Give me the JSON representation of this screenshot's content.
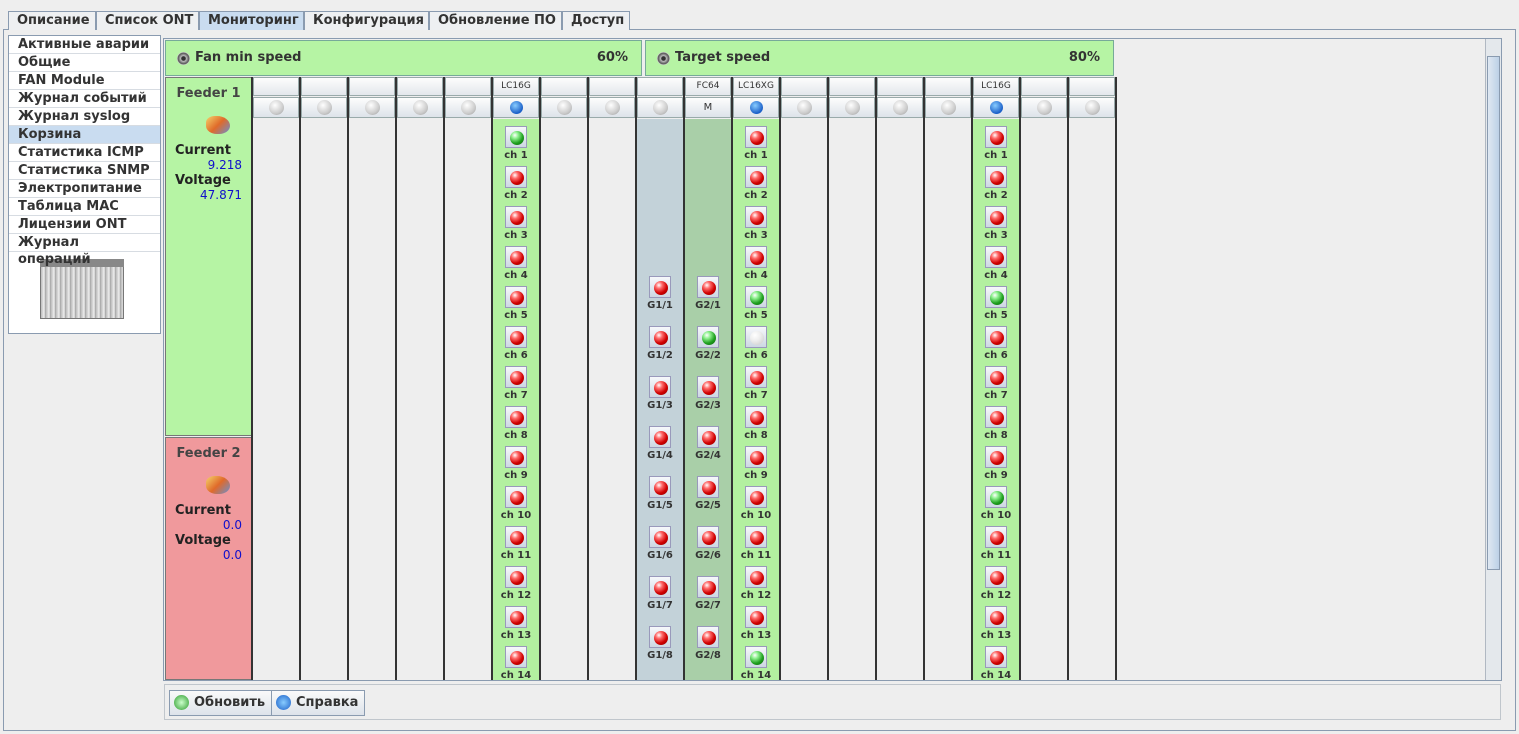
{
  "tabs": [
    {
      "label": "Описание"
    },
    {
      "label": "Список ONT"
    },
    {
      "label": "Мониторинг",
      "active": true
    },
    {
      "label": "Конфигурация"
    },
    {
      "label": "Обновление ПО"
    },
    {
      "label": "Доступ"
    }
  ],
  "menu": [
    {
      "label": "Активные аварии"
    },
    {
      "label": "Общие"
    },
    {
      "label": "FAN Module"
    },
    {
      "label": "Журнал событий"
    },
    {
      "label": "Журнал syslog"
    },
    {
      "label": "Корзина",
      "selected": true
    },
    {
      "label": "Статистика ICMP"
    },
    {
      "label": "Статистика SNMP"
    },
    {
      "label": "Электропитание"
    },
    {
      "label": "Таблица MAC"
    },
    {
      "label": "Лицензии ONT"
    },
    {
      "label": "Журнал операций"
    }
  ],
  "fans": [
    {
      "label": "Fan min speed",
      "value": "60%"
    },
    {
      "label": "Target speed",
      "value": "80%"
    }
  ],
  "feeders": [
    {
      "title": "Feeder 1",
      "current_label": "Current",
      "current": "9.218",
      "voltage_label": "Voltage",
      "voltage": "47.871",
      "color": "#b6f4a4"
    },
    {
      "title": "Feeder 2",
      "current_label": "Current",
      "current": "0.0",
      "voltage_label": "Voltage",
      "voltage": "0.0",
      "color": "#f0999c"
    }
  ],
  "slots": [
    {
      "status": "off"
    },
    {
      "status": "off"
    },
    {
      "status": "off"
    },
    {
      "status": "off"
    },
    {
      "status": "off"
    },
    {
      "label": "LC16G",
      "status": "info",
      "body": "#b3f0a0",
      "pitch": 40,
      "channels": [
        {
          "name": "ch 1",
          "state": "green"
        },
        {
          "name": "ch 2",
          "state": "red"
        },
        {
          "name": "ch 3",
          "state": "red"
        },
        {
          "name": "ch 4",
          "state": "red"
        },
        {
          "name": "ch 5",
          "state": "red"
        },
        {
          "name": "ch 6",
          "state": "red"
        },
        {
          "name": "ch 7",
          "state": "red"
        },
        {
          "name": "ch 8",
          "state": "red"
        },
        {
          "name": "ch 9",
          "state": "red"
        },
        {
          "name": "ch 10",
          "state": "red"
        },
        {
          "name": "ch 11",
          "state": "red"
        },
        {
          "name": "ch 12",
          "state": "red"
        },
        {
          "name": "ch 13",
          "state": "red"
        },
        {
          "name": "ch 14",
          "state": "red"
        }
      ]
    },
    {
      "status": "off"
    },
    {
      "status": "off"
    },
    {
      "status": "off",
      "body": "#c3d2d9",
      "pitch": 50,
      "start": 150,
      "channels": [
        {
          "name": "G1/1",
          "state": "red"
        },
        {
          "name": "G1/2",
          "state": "red"
        },
        {
          "name": "G1/3",
          "state": "red"
        },
        {
          "name": "G1/4",
          "state": "red"
        },
        {
          "name": "G1/5",
          "state": "red"
        },
        {
          "name": "G1/6",
          "state": "red"
        },
        {
          "name": "G1/7",
          "state": "red"
        },
        {
          "name": "G1/8",
          "state": "red"
        }
      ]
    },
    {
      "label": "FC64",
      "sub": "M",
      "body": "#a9cfa8",
      "pitch": 50,
      "start": 150,
      "channels": [
        {
          "name": "G2/1",
          "state": "red"
        },
        {
          "name": "G2/2",
          "state": "green"
        },
        {
          "name": "G2/3",
          "state": "red"
        },
        {
          "name": "G2/4",
          "state": "red"
        },
        {
          "name": "G2/5",
          "state": "red"
        },
        {
          "name": "G2/6",
          "state": "red"
        },
        {
          "name": "G2/7",
          "state": "red"
        },
        {
          "name": "G2/8",
          "state": "red"
        }
      ]
    },
    {
      "label": "LC16XG",
      "status": "info",
      "body": "#b3f0a0",
      "pitch": 40,
      "channels": [
        {
          "name": "ch 1",
          "state": "red"
        },
        {
          "name": "ch 2",
          "state": "red"
        },
        {
          "name": "ch 3",
          "state": "red"
        },
        {
          "name": "ch 4",
          "state": "red"
        },
        {
          "name": "ch 5",
          "state": "green"
        },
        {
          "name": "ch 6",
          "state": "off"
        },
        {
          "name": "ch 7",
          "state": "red"
        },
        {
          "name": "ch 8",
          "state": "red"
        },
        {
          "name": "ch 9",
          "state": "red"
        },
        {
          "name": "ch 10",
          "state": "red"
        },
        {
          "name": "ch 11",
          "state": "red"
        },
        {
          "name": "ch 12",
          "state": "red"
        },
        {
          "name": "ch 13",
          "state": "red"
        },
        {
          "name": "ch 14",
          "state": "green"
        }
      ]
    },
    {
      "status": "off"
    },
    {
      "status": "off"
    },
    {
      "status": "off"
    },
    {
      "status": "off"
    },
    {
      "label": "LC16G",
      "status": "info",
      "body": "#b3f0a0",
      "pitch": 40,
      "channels": [
        {
          "name": "ch 1",
          "state": "red"
        },
        {
          "name": "ch 2",
          "state": "red"
        },
        {
          "name": "ch 3",
          "state": "red"
        },
        {
          "name": "ch 4",
          "state": "red"
        },
        {
          "name": "ch 5",
          "state": "green"
        },
        {
          "name": "ch 6",
          "state": "red"
        },
        {
          "name": "ch 7",
          "state": "red"
        },
        {
          "name": "ch 8",
          "state": "red"
        },
        {
          "name": "ch 9",
          "state": "red"
        },
        {
          "name": "ch 10",
          "state": "green"
        },
        {
          "name": "ch 11",
          "state": "red"
        },
        {
          "name": "ch 12",
          "state": "red"
        },
        {
          "name": "ch 13",
          "state": "red"
        },
        {
          "name": "ch 14",
          "state": "red"
        }
      ]
    },
    {
      "status": "off"
    },
    {
      "status": "off"
    }
  ],
  "buttons": [
    {
      "label": "Обновить",
      "icon": "refresh"
    },
    {
      "label": "Справка",
      "icon": "help"
    }
  ]
}
